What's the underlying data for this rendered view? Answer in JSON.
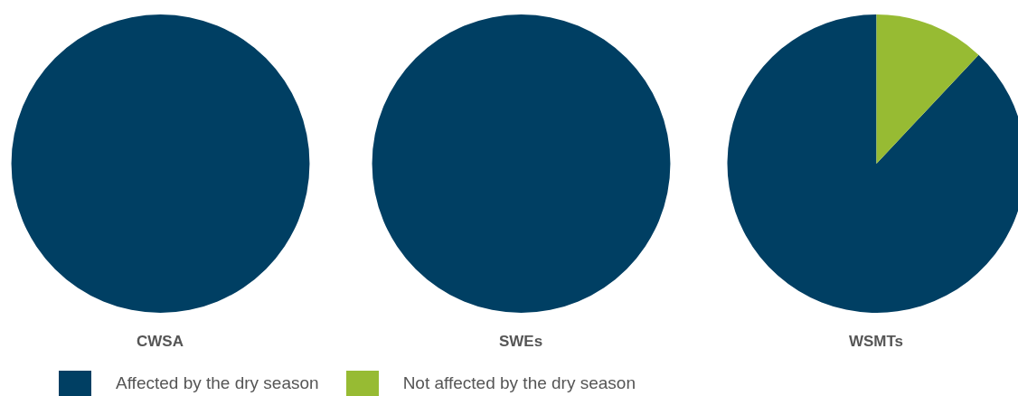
{
  "chart_data": [
    {
      "type": "pie",
      "title": "CWSA",
      "categories": [
        "Affected by the dry season",
        "Not affected by the dry season"
      ],
      "values": [
        100,
        0
      ],
      "colors": [
        "#003f63",
        "#97bb33"
      ],
      "legend": "bottom"
    },
    {
      "type": "pie",
      "title": "SWEs",
      "categories": [
        null,
        null
      ],
      "values": [
        100,
        0
      ],
      "colors": [
        "#003f63",
        "#97bb33"
      ]
    },
    {
      "type": "pie",
      "title": "WSMTs",
      "categories": [
        null,
        null
      ],
      "values": [
        88,
        12
      ],
      "colors": [
        "#003f63",
        "#97bb33"
      ]
    }
  ]
}
